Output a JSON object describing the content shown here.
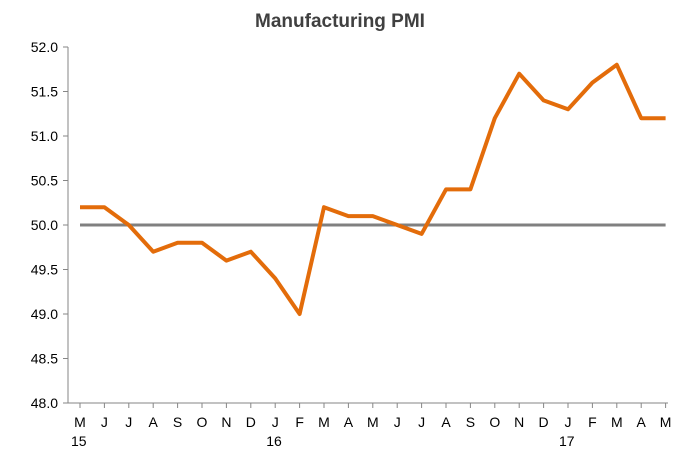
{
  "chart_data": {
    "type": "line",
    "title": "Manufacturing PMI",
    "xlabel": "",
    "ylabel": "",
    "ylim": [
      48.0,
      52.0
    ],
    "y_ticks": [
      "48.0",
      "48.5",
      "49.0",
      "49.5",
      "50.0",
      "50.5",
      "51.0",
      "51.5",
      "52.0"
    ],
    "categories": [
      "M",
      "J",
      "J",
      "A",
      "S",
      "O",
      "N",
      "D",
      "J",
      "F",
      "M",
      "A",
      "M",
      "J",
      "J",
      "A",
      "S",
      "O",
      "N",
      "D",
      "J",
      "F",
      "M",
      "A",
      "M"
    ],
    "year_labels": [
      {
        "index": 0,
        "label": "15"
      },
      {
        "index": 8,
        "label": "16"
      },
      {
        "index": 20,
        "label": "17"
      }
    ],
    "series": [
      {
        "values": [
          50.2,
          50.2,
          50.0,
          49.7,
          49.8,
          49.8,
          49.6,
          49.7,
          49.4,
          49.0,
          50.2,
          50.1,
          50.1,
          50.0,
          49.9,
          50.4,
          50.4,
          51.2,
          51.7,
          51.4,
          51.3,
          51.6,
          51.8,
          51.2,
          51.2
        ],
        "color": "#E36C0A"
      }
    ],
    "reference_line": {
      "value": 50.0,
      "color": "#808080"
    },
    "grid": false,
    "legend": "none"
  }
}
